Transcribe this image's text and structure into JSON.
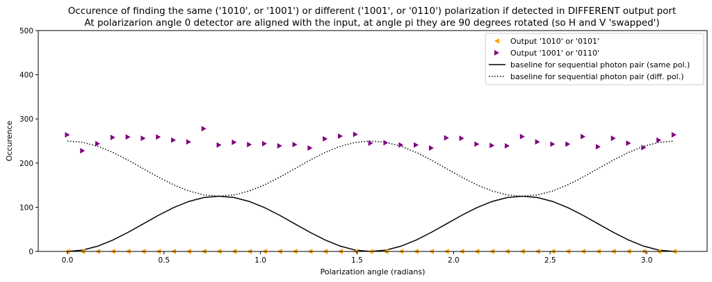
{
  "chart_data": {
    "type": "scatter",
    "title": [
      "Occurence of finding the same ('1010', or '1001') or different ('1001', or '0110') polarization if detected in DIFFERENT output port",
      "At polarizarion angle 0 detector are aligned with the input, at angle pi they are 90 degrees rotated (so H and V 'swapped')"
    ],
    "xlabel": "Polarization angle (radians)",
    "ylabel": "Occurence",
    "xlim": [
      -0.151,
      3.313
    ],
    "ylim": [
      0,
      500
    ],
    "xticks": [
      0.0,
      0.5,
      1.0,
      1.5,
      2.0,
      2.5,
      3.0
    ],
    "xtick_labels": [
      "0.0",
      "0.5",
      "1.0",
      "1.5",
      "2.0",
      "2.5",
      "3.0"
    ],
    "yticks": [
      0,
      100,
      200,
      300,
      400,
      500
    ],
    "ytick_labels": [
      "0",
      "100",
      "200",
      "300",
      "400",
      "500"
    ],
    "x_points": 41,
    "x_step": "pi/40",
    "legend_position": "top-right",
    "series": [
      {
        "name": "Output '1010' or '0101'",
        "kind": "scatter",
        "marker": "triangle-left",
        "color": "#FFA500",
        "values": [
          0,
          0,
          0,
          0,
          0,
          0,
          0,
          0,
          0,
          0,
          0,
          0,
          0,
          0,
          0,
          0,
          0,
          0,
          0,
          0,
          0,
          0,
          0,
          0,
          0,
          0,
          0,
          0,
          0,
          0,
          0,
          0,
          0,
          0,
          0,
          0,
          0,
          0,
          0,
          0,
          0
        ]
      },
      {
        "name": "Output '1001' or '0110'",
        "kind": "scatter",
        "marker": "triangle-right",
        "color": "#800080",
        "values": [
          264,
          228,
          244,
          258,
          259,
          256,
          259,
          252,
          248,
          278,
          241,
          247,
          242,
          244,
          239,
          242,
          234,
          255,
          261,
          265,
          245,
          246,
          241,
          241,
          234,
          257,
          256,
          243,
          240,
          239,
          260,
          248,
          243,
          243,
          260,
          237,
          256,
          245,
          235,
          252,
          264
        ]
      },
      {
        "name": "baseline for sequential photon pair (same pol.)",
        "kind": "line",
        "style": "solid",
        "color": "#000000",
        "formula": "62.5*(1-cos(4x))"
      },
      {
        "name": "baseline for sequential photon pair (diff. pol.)",
        "kind": "line",
        "style": "dotted",
        "color": "#000000",
        "formula": "187.5+62.5*cos(4x)"
      }
    ]
  }
}
